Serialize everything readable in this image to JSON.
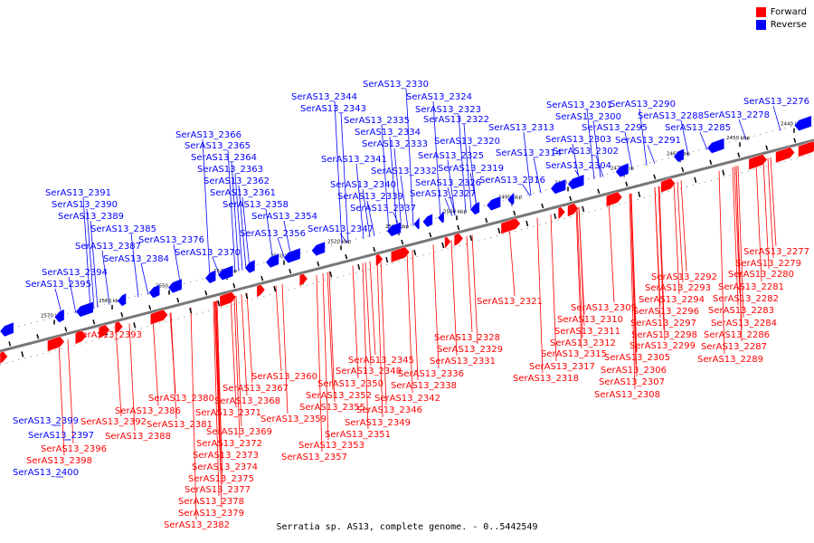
{
  "legend": {
    "forward": {
      "label": "Forward",
      "color": "#ff0000"
    },
    "reverse": {
      "label": "Reverse",
      "color": "#0000ff"
    }
  },
  "caption": "Serratia sp. AS13, complete genome. - 0..5442549",
  "colors": {
    "forward": "#ff0000",
    "reverse": "#0000ff",
    "backbone": "#777777",
    "tick": "#000000"
  },
  "scale_ticks": [
    "2440 kbp",
    "2450 kbp",
    "2460 kbp",
    "2470 kbp",
    "2480 kbp",
    "2490 kbp",
    "2500 kbp",
    "2510 kbp",
    "2520 kbp",
    "2530 kbp",
    "2540 kbp",
    "2550 kbp",
    "2560 kbp",
    "2570 kbp"
  ],
  "reverse_genes": [
    "SerAS13_2276",
    "SerAS13_2278",
    "SerAS13_2285",
    "SerAS13_2288",
    "SerAS13_2290",
    "SerAS13_2291",
    "SerAS13_2295",
    "SerAS13_2300",
    "SerAS13_2301",
    "SerAS13_2302",
    "SerAS13_2303",
    "SerAS13_2304",
    "SerAS13_2313",
    "SerAS13_2314",
    "SerAS13_2316",
    "SerAS13_2319",
    "SerAS13_2320",
    "SerAS13_2322",
    "SerAS13_2323",
    "SerAS13_2324",
    "SerAS13_2325",
    "SerAS13_2326",
    "SerAS13_2327",
    "SerAS13_2330",
    "SerAS13_2332",
    "SerAS13_2333",
    "SerAS13_2334",
    "SerAS13_2335",
    "SerAS13_2337",
    "SerAS13_2339",
    "SerAS13_2340",
    "SerAS13_2341",
    "SerAS13_2343",
    "SerAS13_2344",
    "SerAS13_2347",
    "SerAS13_2354",
    "SerAS13_2356",
    "SerAS13_2358",
    "SerAS13_2361",
    "SerAS13_2362",
    "SerAS13_2363",
    "SerAS13_2364",
    "SerAS13_2365",
    "SerAS13_2366",
    "SerAS13_2370",
    "SerAS13_2376",
    "SerAS13_2384",
    "SerAS13_2385",
    "SerAS13_2387",
    "SerAS13_2389",
    "SerAS13_2390",
    "SerAS13_2391",
    "SerAS13_2394",
    "SerAS13_2395",
    "SerAS13_2397",
    "SerAS13_2399",
    "SerAS13_2400"
  ],
  "forward_genes": [
    "SerAS13_2277",
    "SerAS13_2279",
    "SerAS13_2280",
    "SerAS13_2281",
    "SerAS13_2282",
    "SerAS13_2283",
    "SerAS13_2284",
    "SerAS13_2286",
    "SerAS13_2287",
    "SerAS13_2289",
    "SerAS13_2292",
    "SerAS13_2293",
    "SerAS13_2294",
    "SerAS13_2296",
    "SerAS13_2297",
    "SerAS13_2298",
    "SerAS13_2299",
    "SerAS13_2305",
    "SerAS13_2306",
    "SerAS13_2307",
    "SerAS13_2308",
    "SerAS13_2309",
    "SerAS13_2310",
    "SerAS13_2311",
    "SerAS13_2312",
    "SerAS13_2315",
    "SerAS13_2317",
    "SerAS13_2318",
    "SerAS13_2321",
    "SerAS13_2328",
    "SerAS13_2329",
    "SerAS13_2331",
    "SerAS13_2336",
    "SerAS13_2338",
    "SerAS13_2342",
    "SerAS13_2345",
    "SerAS13_2346",
    "SerAS13_2348",
    "SerAS13_2349",
    "SerAS13_2350",
    "SerAS13_2351",
    "SerAS13_2352",
    "SerAS13_2353",
    "SerAS13_2355",
    "SerAS13_2357",
    "SerAS13_2359",
    "SerAS13_2360",
    "SerAS13_2367",
    "SerAS13_2368",
    "SerAS13_2369",
    "SerAS13_2371",
    "SerAS13_2372",
    "SerAS13_2373",
    "SerAS13_2374",
    "SerAS13_2375",
    "SerAS13_2377",
    "SerAS13_2378",
    "SerAS13_2379",
    "SerAS13_2380",
    "SerAS13_2381",
    "SerAS13_2382",
    "SerAS13_2386",
    "SerAS13_2388",
    "SerAS13_2392",
    "SerAS13_2393",
    "SerAS13_2396",
    "SerAS13_2398"
  ]
}
